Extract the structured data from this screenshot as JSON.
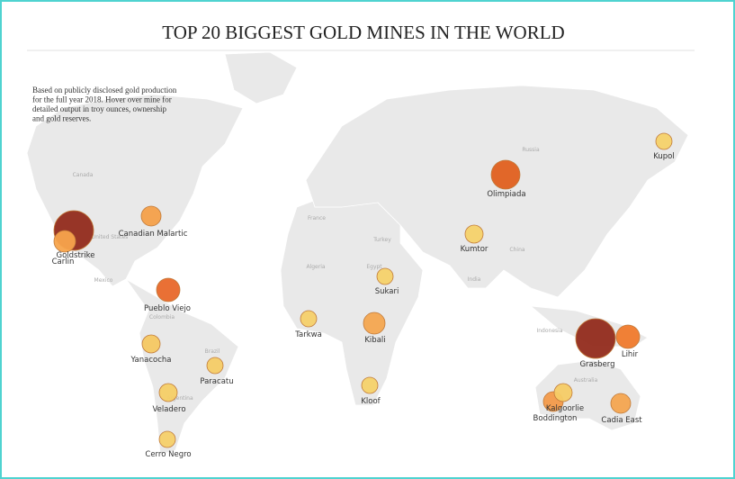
{
  "header": {
    "title": "TOP 20 BIGGEST GOLD MINES IN THE WORLD",
    "description": [
      "Based on publicly disclosed gold production",
      "for the full year 2018. Hover over mine for",
      "detailed output in troy ounces, ownership",
      "and gold reserves."
    ]
  },
  "map": {
    "country_labels": [
      "Canada",
      "United States",
      "Mexico",
      "Colombia",
      "Brazil",
      "Argentina",
      "France",
      "Turkey",
      "Egypt",
      "Algeria",
      "Russia",
      "China",
      "India",
      "Indonesia",
      "Australia"
    ],
    "mines": [
      {
        "name": "Goldstrike",
        "color": "#922b1c"
      },
      {
        "name": "Carlin",
        "color": "#f7a44c"
      },
      {
        "name": "Canadian Malartic",
        "color": "#f4a04a"
      },
      {
        "name": "Pueblo Viejo",
        "color": "#e8682a"
      },
      {
        "name": "Yanacocha",
        "color": "#f5c862"
      },
      {
        "name": "Paracatu",
        "color": "#f5cc66"
      },
      {
        "name": "Veladero",
        "color": "#f5cf66"
      },
      {
        "name": "Cerro Negro",
        "color": "#f5d06a"
      },
      {
        "name": "Tarkwa",
        "color": "#f5d06a"
      },
      {
        "name": "Kibali",
        "color": "#f4a650"
      },
      {
        "name": "Sukari",
        "color": "#f5d26a"
      },
      {
        "name": "Kloof",
        "color": "#f5d26a"
      },
      {
        "name": "Kumtor",
        "color": "#f5d26a"
      },
      {
        "name": "Olimpiada",
        "color": "#e0601f"
      },
      {
        "name": "Kupol",
        "color": "#f5d26a"
      },
      {
        "name": "Grasberg",
        "color": "#922b1c"
      },
      {
        "name": "Lihir",
        "color": "#f07a2c"
      },
      {
        "name": "Kalgoorlie",
        "color": "#f5cc66"
      },
      {
        "name": "Boddington",
        "color": "#f39a4a"
      },
      {
        "name": "Cadia East",
        "color": "#f4a550"
      }
    ]
  }
}
